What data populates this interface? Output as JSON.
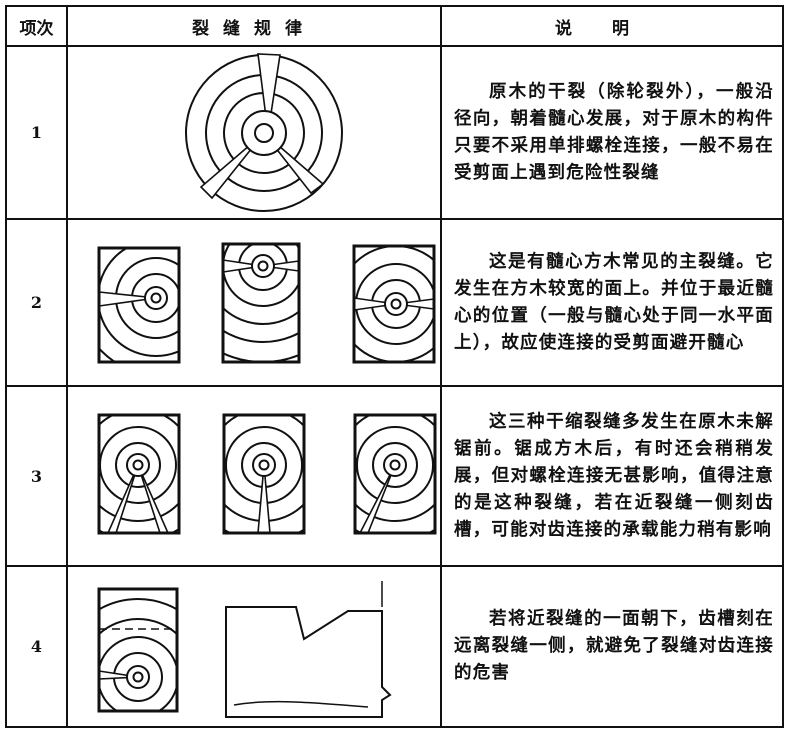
{
  "header": {
    "item": "项次",
    "pattern": "裂缝规律",
    "note": "说明"
  },
  "rows": [
    {
      "item": "1",
      "note": "原木的干裂（除轮裂外），一般沿径向，朝着髓心发展，对于原木的构件只要不采用单排螺栓连接，一般不易在受剪面上遇到危险性裂缝"
    },
    {
      "item": "2",
      "note": "这是有髓心方木常见的主裂缝。它发生在方木较宽的面上。并位于最近髓心的位置（一般与髓心处于同一水平面上），故应使连接的受剪面避开髓心"
    },
    {
      "item": "3",
      "note": "这三种干缩裂缝多发生在原木未解锯前。锯成方木后，有时还会稍稍发展，但对螺栓连接无甚影响，值得注意的是这种裂缝，若在近裂缝一侧刻齿槽，可能对齿连接的承载能力稍有影响"
    },
    {
      "item": "4",
      "note": "若将近裂缝的一面朝下，齿槽刻在远离裂缝一侧，就避免了裂缝对齿连接的危害"
    }
  ]
}
